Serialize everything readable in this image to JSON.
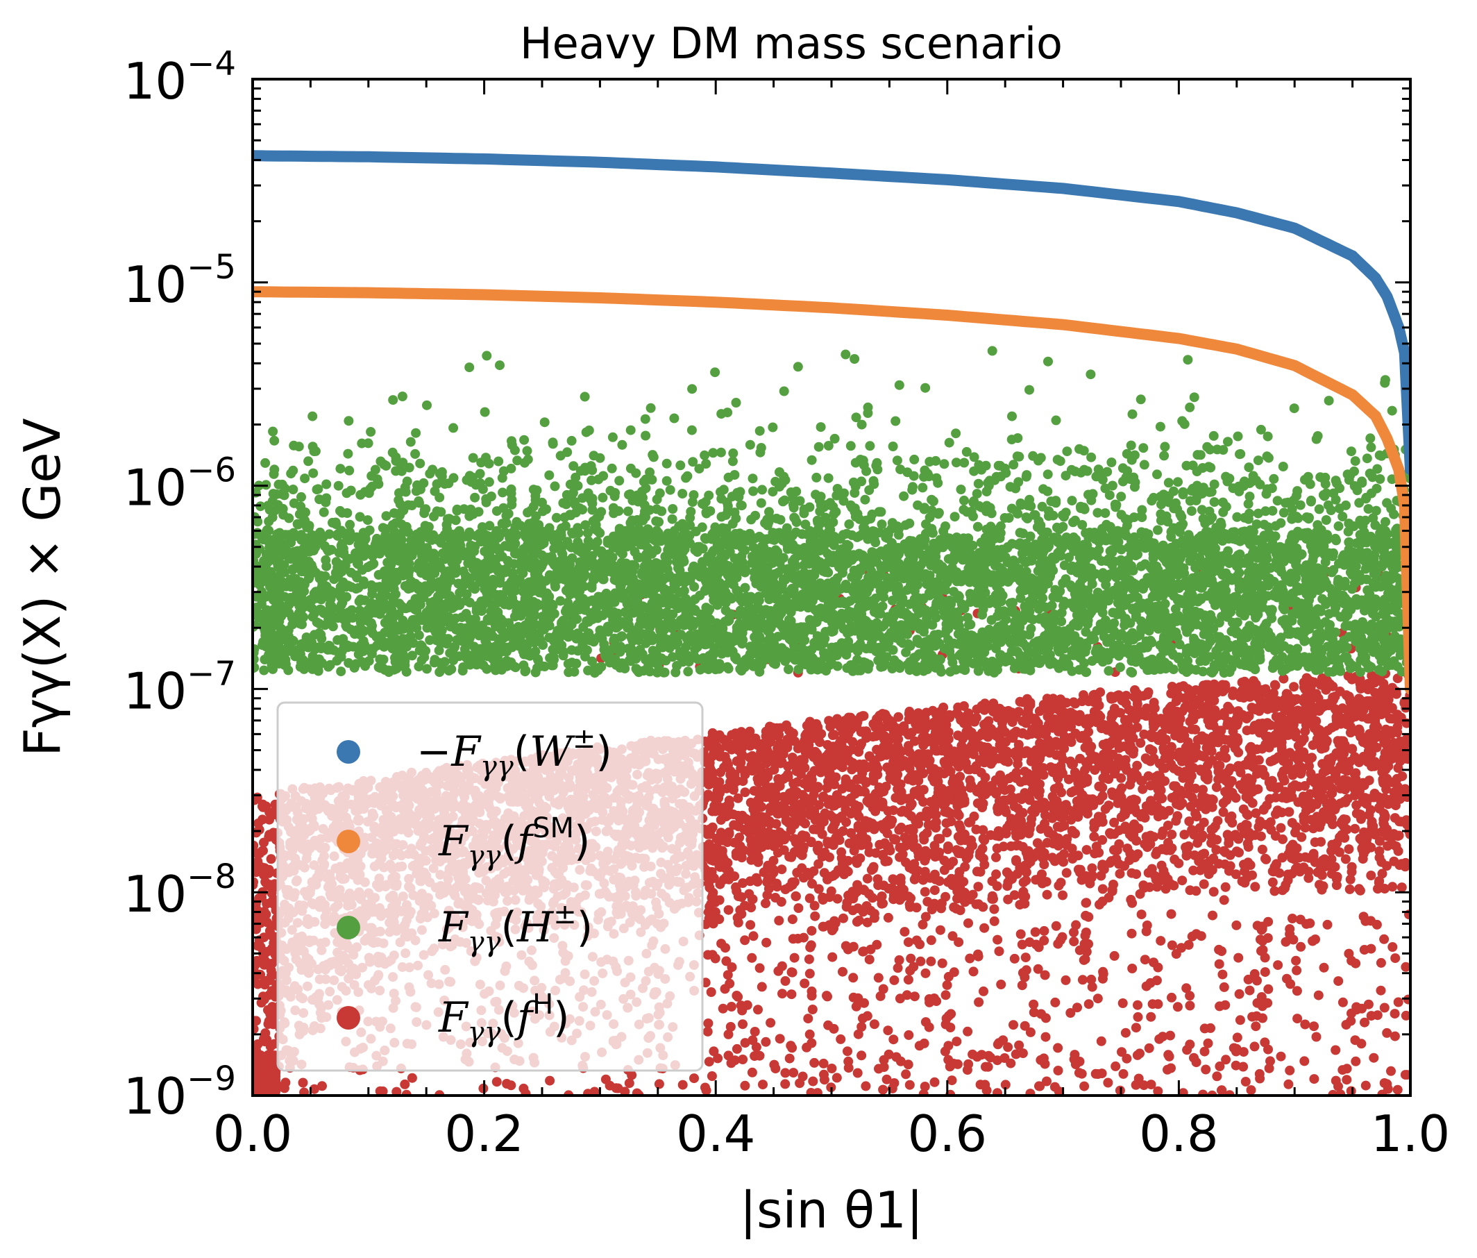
{
  "colors": {
    "w": "#3b78b2",
    "fsm": "#f0883c",
    "h": "#54a040",
    "fh": "#c83834"
  },
  "chart_data": {
    "type": "scatter",
    "title": "Heavy DM mass scenario",
    "xlabel": "|sin θ1|",
    "ylabel": "Fγγ(X) × GeV",
    "xlim": [
      0.0,
      1.0
    ],
    "ylim": [
      1e-09,
      0.0001
    ],
    "yscale": "log",
    "xticks": [
      "0.0",
      "0.2",
      "0.4",
      "0.6",
      "0.8",
      "1.0"
    ],
    "yticks": [
      {
        "base": "10",
        "exp": "−4"
      },
      {
        "base": "10",
        "exp": "−5"
      },
      {
        "base": "10",
        "exp": "−6"
      },
      {
        "base": "10",
        "exp": "−7"
      },
      {
        "base": "10",
        "exp": "−8"
      },
      {
        "base": "10",
        "exp": "−9"
      }
    ],
    "legend_position": "lower-left",
    "series": [
      {
        "key": "w",
        "name": "−Fγγ(W±)",
        "label_main": "−F",
        "label_sub": "γγ",
        "label_paren": "(",
        "label_sym": "W",
        "label_sup": "±",
        "label_close": ")",
        "kind": "curve",
        "x": [
          0.0,
          0.1,
          0.2,
          0.3,
          0.4,
          0.5,
          0.6,
          0.7,
          0.8,
          0.85,
          0.9,
          0.95,
          0.97,
          0.98,
          0.99,
          0.995,
          1.0
        ],
        "y": [
          4.2e-05,
          4.15e-05,
          4.05e-05,
          3.9e-05,
          3.7e-05,
          3.45e-05,
          3.2e-05,
          2.9e-05,
          2.5e-05,
          2.2e-05,
          1.85e-05,
          1.35e-05,
          1.05e-05,
          8.5e-06,
          6e-06,
          4.5e-06,
          1.2e-06
        ]
      },
      {
        "key": "fsm",
        "name": "Fγγ(fSM)",
        "label_main": "F",
        "label_sub": "γγ",
        "label_paren": "(",
        "label_sym": "f",
        "label_sup": "SM",
        "label_close": ")",
        "kind": "curve",
        "x": [
          0.0,
          0.1,
          0.2,
          0.3,
          0.4,
          0.5,
          0.6,
          0.7,
          0.8,
          0.85,
          0.9,
          0.95,
          0.97,
          0.98,
          0.99,
          0.995,
          1.0
        ],
        "y": [
          9e-06,
          8.9e-06,
          8.7e-06,
          8.4e-06,
          8e-06,
          7.5e-06,
          6.9e-06,
          6.2e-06,
          5.3e-06,
          4.7e-06,
          3.9e-06,
          2.8e-06,
          2.2e-06,
          1.7e-06,
          1.2e-06,
          8e-07,
          1e-07
        ]
      },
      {
        "key": "h",
        "name": "Fγγ(H±)",
        "label_main": "F",
        "label_sub": "γγ",
        "label_paren": "(",
        "label_sym": "H",
        "label_sup": "±",
        "label_close": ")",
        "kind": "scatter",
        "band_lo": 1.2e-07,
        "band_hi": 6e-07,
        "max_y": 5e-06
      },
      {
        "key": "fh",
        "name": "Fγγ(fH)",
        "label_main": "F",
        "label_sub": "γγ",
        "label_paren": "(",
        "label_sym": "f",
        "label_sup": "H",
        "label_close": ")",
        "kind": "scatter",
        "band_lo": 1e-09,
        "band_hi": 1.2e-07,
        "max_y": 4e-07
      }
    ]
  }
}
